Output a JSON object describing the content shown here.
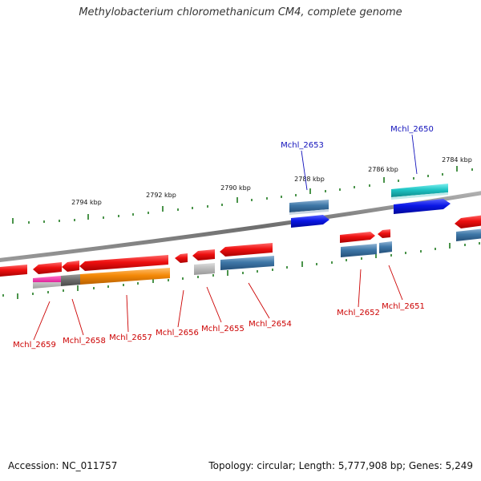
{
  "title": "Methylobacterium chloromethanicum CM4, complete genome",
  "footer": {
    "accession": "Accession: NC_011757",
    "summary": "Topology: circular; Length: 5,777,908 bp; Genes: 5,249"
  },
  "scale_labels": [
    "2794 kbp",
    "2792 kbp",
    "2790 kbp",
    "2788 kbp",
    "2786 kbp",
    "2784 kbp"
  ],
  "gene_labels": {
    "top": [
      "Mchl_2653",
      "Mchl_2650"
    ],
    "bottom": [
      "Mchl_2659",
      "Mchl_2658",
      "Mchl_2657",
      "Mchl_2656",
      "Mchl_2655",
      "Mchl_2654",
      "Mchl_2652",
      "Mchl_2651"
    ]
  },
  "colors": {
    "cds_forward": "#e81010",
    "rna_blue": "#0a17e6",
    "cyan": "#1fc4c4",
    "steel": "#3f78a8",
    "orange": "#f58a08",
    "magenta": "#e0259a",
    "gray": "#6a6a6a",
    "light_gray": "#b8b8b8",
    "tick": "#1e7a1e",
    "label_red": "#cc0000",
    "label_blue": "#1010bb"
  }
}
